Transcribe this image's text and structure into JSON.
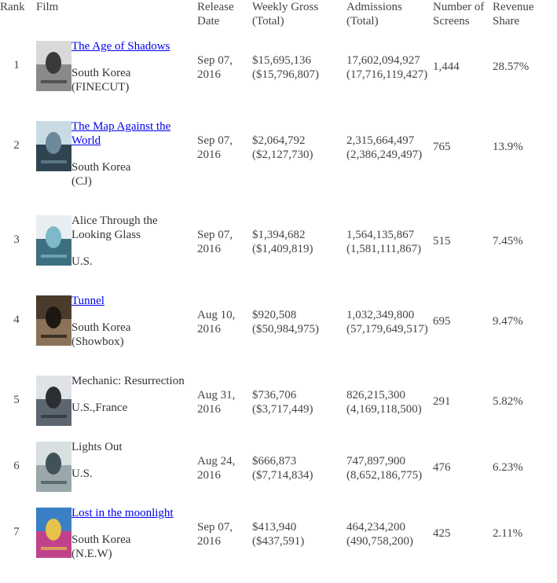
{
  "headers": {
    "rank": "Rank",
    "film": "Film",
    "release_line1": "Release",
    "release_line2": "Date",
    "gross_line1": "Weekly Gross",
    "gross_line2": "(Total)",
    "admissions_line1": "Admissions",
    "admissions_line2": "(Total)",
    "screens_line1": "Number of",
    "screens_line2": "Screens",
    "share_line1": "Revenue",
    "share_line2": "Share"
  },
  "films": [
    {
      "rank": "1",
      "title": "The Age of Shadows",
      "title_line1": "The Age of Shadows",
      "title_line2": "",
      "linked": true,
      "country": "South Korea",
      "distributor": "(FINECUT)",
      "release_line1": "Sep 07,",
      "release_line2": "2016",
      "gross": "$15,695,136",
      "gross_total": "($15,796,807)",
      "admissions": "17,602,094,927",
      "admissions_total": "(17,716,119,427)",
      "screens": "1,444",
      "share": "28.57%",
      "poster_colors": [
        "#d9d9d9",
        "#3a3a3a",
        "#8a8a8a"
      ]
    },
    {
      "rank": "2",
      "title": "The Map Against the World",
      "title_line1": "The Map Against the",
      "title_line2": "World",
      "linked": true,
      "country": "South Korea",
      "distributor": "(CJ)",
      "release_line1": "Sep 07,",
      "release_line2": "2016",
      "gross": "$2,064,792",
      "gross_total": "($2,127,730)",
      "admissions": "2,315,664,497",
      "admissions_total": "(2,386,249,497)",
      "screens": "765",
      "share": "13.9%",
      "poster_colors": [
        "#c8dbe4",
        "#6d8a9a",
        "#2f4450"
      ]
    },
    {
      "rank": "3",
      "title": "Alice Through the Looking Glass",
      "title_line1": "Alice Through the",
      "title_line2": "Looking Glass",
      "linked": false,
      "country": "U.S.",
      "distributor": "",
      "release_line1": "Sep 07,",
      "release_line2": "2016",
      "gross": "$1,394,682",
      "gross_total": "($1,409,819)",
      "admissions": "1,564,135,867",
      "admissions_total": "(1,581,111,867)",
      "screens": "515",
      "share": "7.45%",
      "poster_colors": [
        "#e8eef2",
        "#7fb8c8",
        "#3c6f80"
      ]
    },
    {
      "rank": "4",
      "title": "Tunnel",
      "title_line1": "Tunnel",
      "title_line2": "",
      "linked": true,
      "country": "South Korea",
      "distributor": "(Showbox)",
      "release_line1": "Aug 10,",
      "release_line2": "2016",
      "gross": "$920,508",
      "gross_total": "($50,984,975)",
      "admissions": "1,032,349,800",
      "admissions_total": "(57,179,649,517)",
      "screens": "695",
      "share": "9.47%",
      "poster_colors": [
        "#4a3b2c",
        "#1d1712",
        "#8c7258"
      ]
    },
    {
      "rank": "5",
      "title": "Mechanic: Resurrection",
      "title_line1": "Mechanic: Resurrection",
      "title_line2": "",
      "linked": false,
      "country": "U.S.,France",
      "distributor": "",
      "release_line1": "Aug 31,",
      "release_line2": "2016",
      "gross": "$736,706",
      "gross_total": "($3,717,449)",
      "admissions": "826,215,300",
      "admissions_total": "(4,169,118,500)",
      "screens": "291",
      "share": "5.82%",
      "poster_colors": [
        "#dfe3e6",
        "#2b2f33",
        "#5c6670"
      ]
    },
    {
      "rank": "6",
      "title": "Lights Out",
      "title_line1": "Lights Out",
      "title_line2": "",
      "linked": false,
      "country": "U.S.",
      "distributor": "",
      "release_line1": "Aug 24,",
      "release_line2": "2016",
      "gross": "$666,873",
      "gross_total": "($7,714,834)",
      "admissions": "747,897,900",
      "admissions_total": "(8,652,186,775)",
      "screens": "476",
      "share": "6.23%",
      "poster_colors": [
        "#d8e0e2",
        "#3f5257",
        "#9aa8ab"
      ]
    },
    {
      "rank": "7",
      "title": "Lost in the moonlight",
      "title_line1": "Lost in the moonlight",
      "title_line2": "",
      "linked": true,
      "country": "South Korea",
      "distributor": "(N.E.W)",
      "release_line1": "Sep 07,",
      "release_line2": "2016",
      "gross": "$413,940",
      "gross_total": "($437,591)",
      "admissions": "464,234,200",
      "admissions_total": "(490,758,200)",
      "screens": "425",
      "share": "2.11%",
      "poster_colors": [
        "#3b7fc4",
        "#e6c24a",
        "#c0428a"
      ]
    }
  ]
}
